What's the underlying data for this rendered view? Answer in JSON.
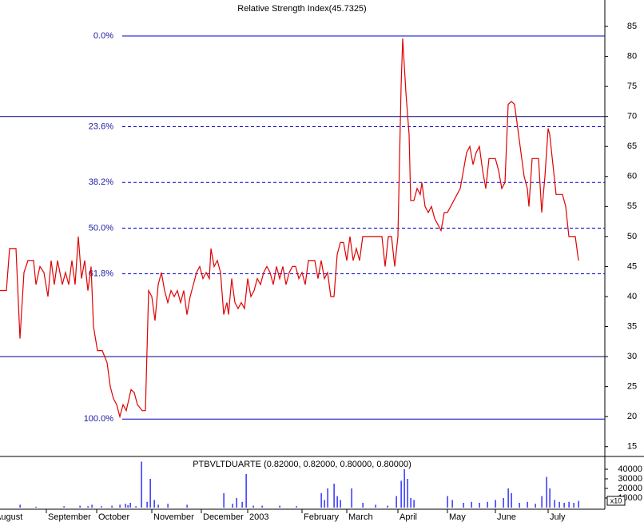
{
  "chart_data": [
    {
      "type": "line",
      "title": "Relative Strength Index(45.7325)",
      "color": "#e00000",
      "xlim": [
        0,
        378.5
      ],
      "ylim": [
        13.5,
        89.4
      ],
      "yticks": [
        15,
        20,
        25,
        30,
        35,
        40,
        45,
        50,
        55,
        60,
        65,
        70,
        75,
        80,
        85
      ],
      "hlines": [
        70,
        30
      ],
      "fib_levels": [
        {
          "label": "0.0%",
          "value": 83.4
        },
        {
          "label": "23.6%",
          "value": 68.3
        },
        {
          "label": "38.2%",
          "value": 59
        },
        {
          "label": "50.0%",
          "value": 51.4
        },
        {
          "label": "61.8%",
          "value": 43.8
        },
        {
          "label": "100.0%",
          "value": 19.6
        }
      ],
      "x": [
        0,
        4,
        6,
        10,
        12.5,
        15,
        17.5,
        21,
        22.5,
        25,
        27.5,
        30,
        32,
        34,
        36,
        39,
        41,
        43,
        45,
        47,
        49,
        51,
        53,
        55,
        57,
        58.5,
        61,
        64,
        67,
        69,
        71,
        73,
        75,
        77,
        79,
        82,
        84,
        86,
        89,
        91,
        93,
        95,
        97,
        99,
        101,
        103,
        105,
        107,
        109,
        111,
        113,
        115,
        117,
        119,
        121,
        123,
        125,
        127,
        129,
        131,
        132,
        134,
        136,
        138,
        140,
        142,
        143,
        145,
        147,
        149,
        151,
        153,
        155,
        157,
        159,
        161,
        163,
        165,
        167,
        169,
        171,
        173,
        175,
        177,
        179,
        181,
        183,
        185,
        187,
        189,
        191,
        193,
        195,
        197,
        199,
        201,
        203,
        205,
        207,
        209,
        211,
        213,
        215,
        217,
        219,
        221,
        223,
        225,
        227,
        229,
        231,
        233,
        235,
        237,
        239,
        241,
        243,
        245,
        247,
        249,
        251,
        252,
        254,
        256,
        257,
        259,
        261,
        263,
        264,
        266,
        268,
        270,
        272,
        274,
        276,
        278,
        280,
        282,
        284,
        286,
        288,
        290,
        292,
        294,
        296,
        298,
        300,
        302,
        304,
        306,
        308,
        310,
        312,
        314,
        316,
        318,
        320,
        322,
        324,
        326,
        328,
        330,
        331,
        333,
        335,
        337,
        339,
        341,
        343,
        344,
        346,
        348,
        350,
        352,
        354,
        356,
        358,
        360,
        362
      ],
      "values": [
        41,
        41,
        48,
        48,
        33,
        44,
        46,
        46,
        42,
        45,
        44,
        40,
        46,
        42,
        46,
        42,
        44,
        42,
        46,
        42,
        50,
        43,
        46,
        41,
        45,
        35,
        31,
        31,
        29,
        25,
        23,
        22,
        20,
        22,
        21,
        24.5,
        24,
        22,
        21,
        21,
        41,
        40,
        36,
        42,
        44,
        41,
        39,
        41,
        40,
        41,
        39,
        41,
        37,
        40,
        42,
        44,
        45,
        43,
        44,
        43,
        48,
        45,
        46,
        44,
        37,
        39,
        37,
        43,
        39,
        38,
        39,
        38,
        43,
        40,
        41,
        43,
        42,
        44,
        45,
        44,
        42,
        45,
        43,
        45,
        42,
        44,
        45,
        45,
        43,
        44,
        42,
        46,
        46,
        46,
        43,
        46,
        43,
        44,
        40,
        40,
        47,
        49,
        49,
        46,
        50,
        46,
        48,
        46,
        50,
        50,
        50,
        50,
        50,
        50,
        50,
        45,
        50,
        50,
        45,
        50,
        75,
        83,
        74,
        67,
        56,
        56,
        58,
        57,
        59,
        55,
        54,
        55,
        53,
        52,
        51,
        54,
        54,
        55,
        56,
        57,
        58,
        61,
        64,
        65,
        62,
        64,
        65,
        61,
        58,
        63,
        63,
        63,
        61,
        58,
        59,
        72,
        72.5,
        72,
        68,
        64,
        60,
        58,
        55,
        63,
        63,
        63,
        54,
        60,
        68,
        67,
        62,
        57,
        57,
        57,
        55,
        50,
        50,
        50,
        46
      ]
    },
    {
      "type": "bar",
      "title": "PTBVLTDUARTE (0.82000, 0.82000, 0.80000, 0.80000)",
      "color": "#0000ff",
      "annotation": "x10",
      "xlim": [
        0,
        378.5
      ],
      "ylim": [
        0,
        52500
      ],
      "yticks": [
        10000,
        20000,
        30000,
        40000
      ],
      "xticks": [
        {
          "value": -4,
          "label": "August"
        },
        {
          "value": 29,
          "label": "September"
        },
        {
          "value": 60.5,
          "label": "October"
        },
        {
          "value": 95,
          "label": "November"
        },
        {
          "value": 126,
          "label": "December"
        },
        {
          "value": 155,
          "label": "2003"
        },
        {
          "value": 189,
          "label": "February"
        },
        {
          "value": 217,
          "label": "March"
        },
        {
          "value": 249,
          "label": "April"
        },
        {
          "value": 280,
          "label": "May"
        },
        {
          "value": 310,
          "label": "June"
        },
        {
          "value": 343,
          "label": "July"
        }
      ],
      "x": [
        12.5,
        22.5,
        40,
        50,
        55,
        57.5,
        63.5,
        70,
        75,
        78.5,
        80,
        81.5,
        85,
        88.5,
        92,
        94,
        96.5,
        99,
        105,
        117,
        140,
        145.5,
        148,
        151.5,
        154,
        158.5,
        164,
        175,
        185.5,
        201,
        203,
        205,
        209,
        211,
        213,
        220,
        227,
        235,
        242.5,
        248,
        251,
        253,
        255,
        257,
        259,
        280,
        283,
        290,
        295,
        300,
        305,
        310,
        315,
        318,
        320,
        325,
        330,
        335,
        339,
        342,
        344,
        347,
        350,
        353,
        356,
        359,
        362
      ],
      "values": [
        3000,
        1000,
        1500,
        2000,
        1500,
        3000,
        1500,
        2000,
        3000,
        4000,
        2500,
        5000,
        1500,
        48000,
        6000,
        30000,
        8000,
        3000,
        4000,
        3000,
        15000,
        4000,
        10000,
        6000,
        35000,
        2000,
        2000,
        2000,
        1500,
        15000,
        8000,
        20000,
        25000,
        12000,
        8000,
        20000,
        5000,
        3000,
        2000,
        12000,
        28000,
        40000,
        30000,
        10000,
        8000,
        12000,
        8000,
        5000,
        6000,
        5000,
        6000,
        8000,
        10000,
        20000,
        15000,
        5000,
        6000,
        4000,
        12000,
        32000,
        20000,
        8000,
        6000,
        5000,
        6000,
        5000,
        7000
      ]
    }
  ]
}
